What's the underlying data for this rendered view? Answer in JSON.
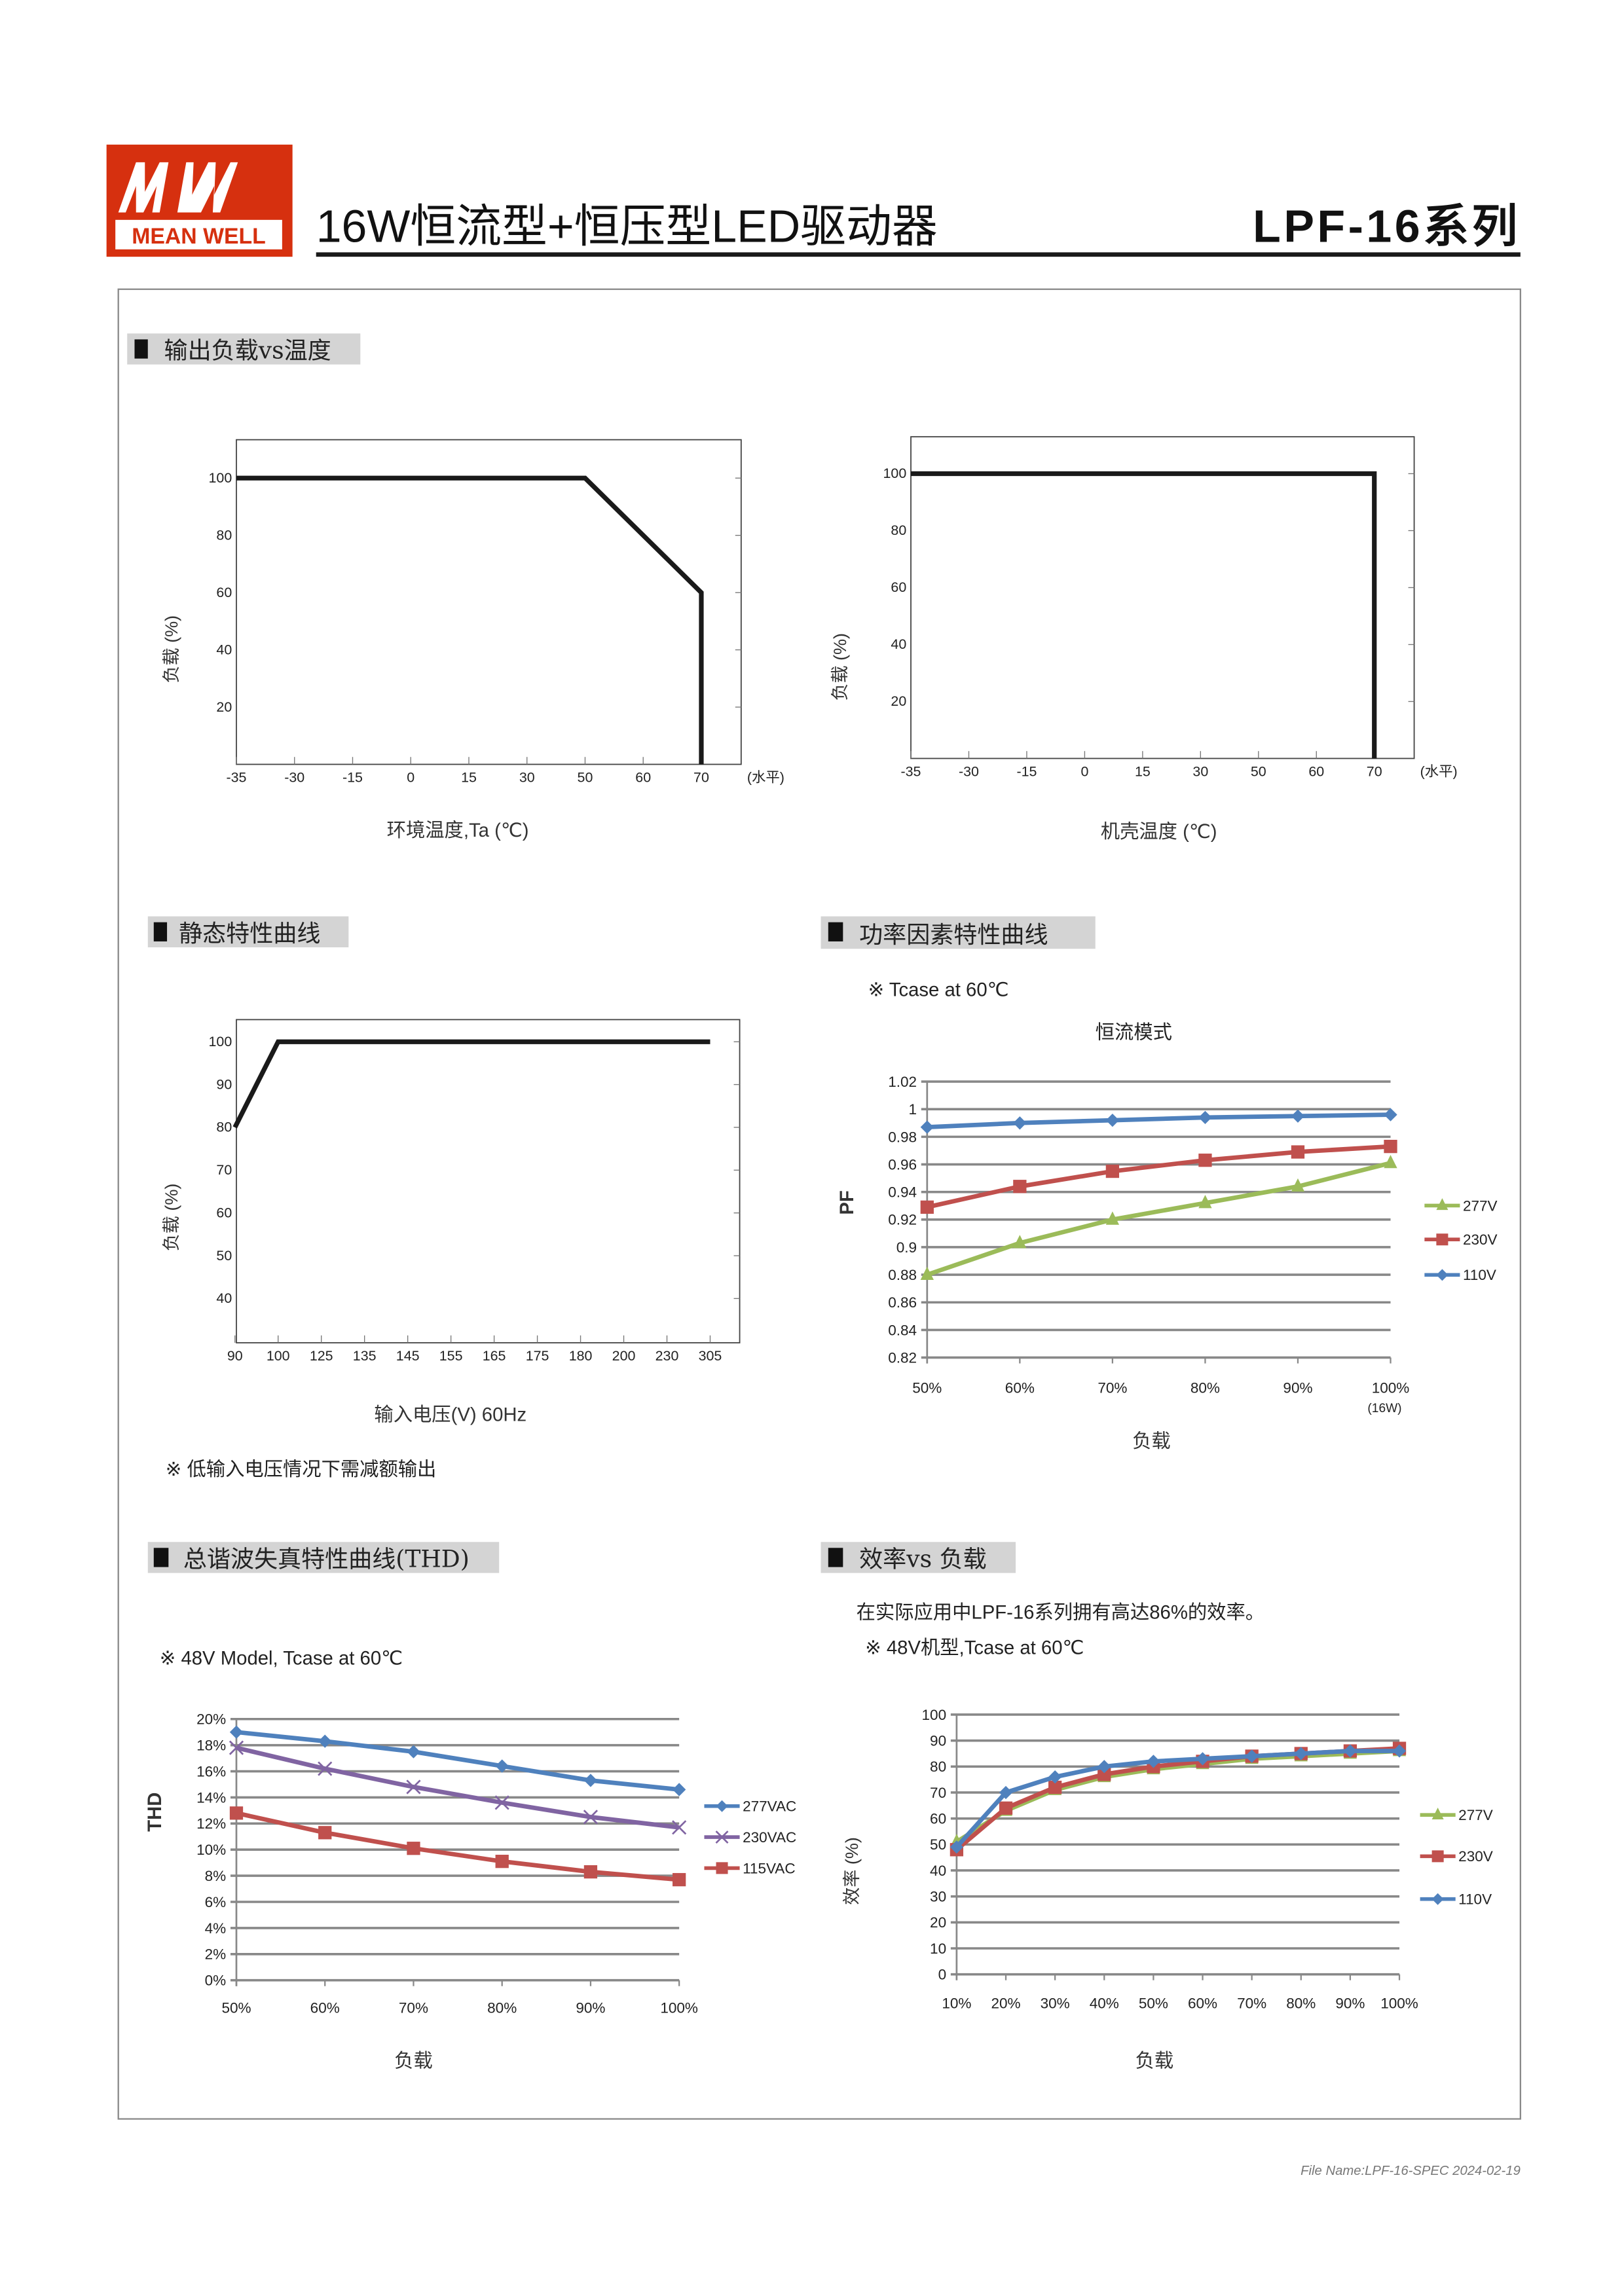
{
  "header": {
    "logo_text": "MEAN WELL",
    "title": "16W恒流型+恒压型LED驱动器",
    "series": "LPF-16系列",
    "brand_color": "#d6300f"
  },
  "sections": {
    "derating": "输出负载vs温度",
    "static": "静态特性曲线",
    "pf": "功率因素特性曲线",
    "thd": "总谐波失真特性曲线(THD)",
    "eff": "效率vs 负载"
  },
  "notes": {
    "static_note": "※ 低输入电压情况下需减额输出",
    "pf_note": "※ Tcase at 60℃",
    "pf_mode": "恒流模式",
    "thd_note": "※ 48V Model, Tcase at 60℃",
    "eff_text": "在实际应用中LPF-16系列拥有高达86%的效率。",
    "eff_note": "※ 48V机型,Tcase at 60℃"
  },
  "footer": {
    "file_name": "File Name:LPF-16-SPEC 2024-02-19"
  },
  "chart_data": [
    {
      "type": "line",
      "xlabel": "环境温度,Ta (℃)",
      "ylabel": "负载 (%)",
      "x_ticks": [
        "-35",
        "-30",
        "-15",
        "0",
        "15",
        "30",
        "50",
        "60",
        "70"
      ],
      "x_tick_values": [
        -35,
        -30,
        -15,
        0,
        15,
        30,
        50,
        60,
        70
      ],
      "x_suffix": "(水平)",
      "y_ticks": [
        20,
        40,
        60,
        80,
        100
      ],
      "ylim": [
        0,
        100
      ],
      "grid": false,
      "series": [
        {
          "x": [
            -35,
            50,
            70,
            70
          ],
          "y": [
            100,
            100,
            60,
            0
          ],
          "color": "#1a1a1a"
        }
      ]
    },
    {
      "type": "line",
      "xlabel": "机壳温度 (℃)",
      "ylabel": "负载 (%)",
      "x_ticks": [
        "-35",
        "-30",
        "-15",
        "0",
        "15",
        "30",
        "50",
        "60",
        "70"
      ],
      "x_tick_values": [
        -35,
        -30,
        -15,
        0,
        15,
        30,
        50,
        60,
        70
      ],
      "x_suffix": "(水平)",
      "y_ticks": [
        20,
        40,
        60,
        80,
        100
      ],
      "ylim": [
        0,
        100
      ],
      "grid": false,
      "series": [
        {
          "x": [
            -35,
            70,
            70
          ],
          "y": [
            100,
            100,
            0
          ],
          "color": "#1a1a1a"
        }
      ]
    },
    {
      "type": "line",
      "xlabel": "输入电压(V) 60Hz",
      "ylabel": "负载 (%)",
      "x_ticks": [
        "90",
        "100",
        "125",
        "135",
        "145",
        "155",
        "165",
        "175",
        "180",
        "200",
        "230",
        "305"
      ],
      "x_tick_values": [
        90,
        100,
        125,
        135,
        145,
        155,
        165,
        175,
        180,
        200,
        230,
        305
      ],
      "y_ticks": [
        40,
        50,
        60,
        70,
        80,
        90,
        100
      ],
      "ylim": [
        30,
        100
      ],
      "grid": false,
      "series": [
        {
          "x": [
            90,
            100,
            305
          ],
          "y": [
            80,
            100,
            100
          ],
          "color": "#1a1a1a"
        }
      ]
    },
    {
      "type": "line",
      "title": "恒流模式",
      "xlabel": "负载",
      "ylabel": "PF",
      "categories": [
        "50%",
        "60%",
        "70%",
        "80%",
        "90%",
        "100%"
      ],
      "last_category_sub": "(16W)",
      "y_ticks": [
        "0.82",
        "0.84",
        "0.86",
        "0.88",
        "0.9",
        "0.92",
        "0.94",
        "0.96",
        "0.98",
        "1",
        "1.02"
      ],
      "ylim": [
        0.82,
        1.02
      ],
      "grid": true,
      "legend": "right",
      "series": [
        {
          "name": "277V",
          "marker": "triangle",
          "color": "#9bbb59",
          "values": [
            0.88,
            0.903,
            0.92,
            0.932,
            0.944,
            0.961
          ]
        },
        {
          "name": "230V",
          "marker": "square",
          "color": "#c0504d",
          "values": [
            0.929,
            0.944,
            0.955,
            0.963,
            0.969,
            0.973
          ]
        },
        {
          "name": "110V",
          "marker": "diamond",
          "color": "#4f81bd",
          "values": [
            0.987,
            0.99,
            0.992,
            0.994,
            0.995,
            0.996
          ]
        }
      ]
    },
    {
      "type": "line",
      "xlabel": "负载",
      "ylabel": "THD",
      "categories": [
        "50%",
        "60%",
        "70%",
        "80%",
        "90%",
        "100%"
      ],
      "y_ticks": [
        "0%",
        "2%",
        "4%",
        "6%",
        "8%",
        "10%",
        "12%",
        "14%",
        "16%",
        "18%",
        "20%"
      ],
      "ylim": [
        0,
        20
      ],
      "grid": true,
      "legend": "right",
      "series": [
        {
          "name": "277VAC",
          "marker": "diamond",
          "color": "#4f81bd",
          "values": [
            19.0,
            18.3,
            17.5,
            16.4,
            15.3,
            14.6
          ]
        },
        {
          "name": "230VAC",
          "marker": "x",
          "color": "#8064a2",
          "values": [
            17.8,
            16.2,
            14.8,
            13.6,
            12.5,
            11.7
          ]
        },
        {
          "name": "115VAC",
          "marker": "square",
          "color": "#c0504d",
          "values": [
            12.8,
            11.3,
            10.1,
            9.1,
            8.3,
            7.7
          ]
        }
      ]
    },
    {
      "type": "line",
      "xlabel": "负载",
      "ylabel": "效率 (%)",
      "categories": [
        "10%",
        "20%",
        "30%",
        "40%",
        "50%",
        "60%",
        "70%",
        "80%",
        "90%",
        "100%"
      ],
      "y_ticks": [
        "0",
        "10",
        "20",
        "30",
        "40",
        "50",
        "60",
        "70",
        "80",
        "90",
        "100"
      ],
      "ylim": [
        0,
        100
      ],
      "grid": true,
      "legend": "right",
      "series": [
        {
          "name": "277V",
          "marker": "triangle",
          "color": "#9bbb59",
          "values": [
            51,
            63,
            71,
            76,
            79,
            81,
            83,
            84,
            85,
            86
          ]
        },
        {
          "name": "230V",
          "marker": "square",
          "color": "#c0504d",
          "values": [
            48,
            64,
            72,
            77,
            80,
            82,
            84,
            85,
            86,
            87
          ]
        },
        {
          "name": "110V",
          "marker": "diamond",
          "color": "#4f81bd",
          "values": [
            49,
            70,
            76,
            80,
            82,
            83,
            84,
            85,
            86,
            86
          ]
        }
      ]
    }
  ]
}
